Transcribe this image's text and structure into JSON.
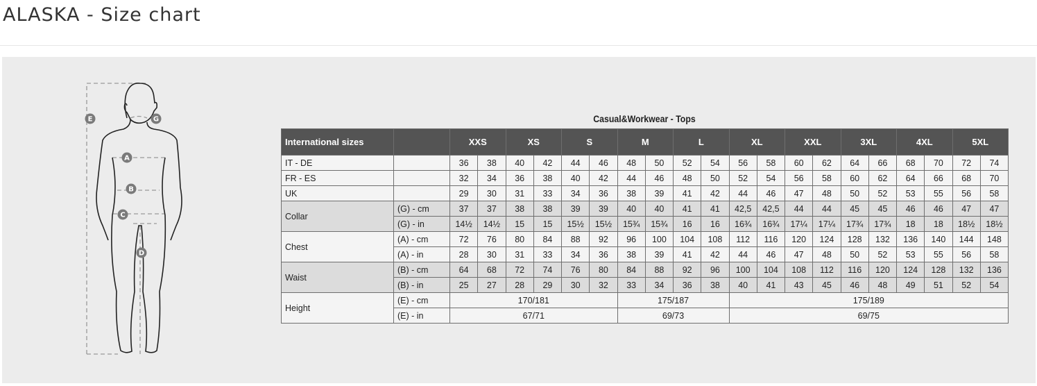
{
  "page": {
    "title": "ALASKA - Size chart"
  },
  "table": {
    "title": "Casual&Workwear - Tops",
    "header_label": "International sizes",
    "sizes": [
      "XXS",
      "XS",
      "S",
      "M",
      "L",
      "XL",
      "XXL",
      "3XL",
      "4XL",
      "5XL"
    ],
    "rows": [
      {
        "group": "IT - DE",
        "unit": "",
        "shade": false,
        "values": [
          "36",
          "38",
          "40",
          "42",
          "44",
          "46",
          "48",
          "50",
          "52",
          "54",
          "56",
          "58",
          "60",
          "62",
          "64",
          "66",
          "68",
          "70",
          "72",
          "74"
        ]
      },
      {
        "group": "FR - ES",
        "unit": "",
        "shade": false,
        "values": [
          "32",
          "34",
          "36",
          "38",
          "40",
          "42",
          "44",
          "46",
          "48",
          "50",
          "52",
          "54",
          "56",
          "58",
          "60",
          "62",
          "64",
          "66",
          "68",
          "70"
        ]
      },
      {
        "group": "UK",
        "unit": "",
        "shade": false,
        "values": [
          "29",
          "30",
          "31",
          "33",
          "34",
          "36",
          "38",
          "39",
          "41",
          "42",
          "44",
          "46",
          "47",
          "48",
          "50",
          "52",
          "53",
          "55",
          "56",
          "58"
        ]
      },
      {
        "group": "Collar",
        "unit": "(G) - cm",
        "shade": true,
        "values": [
          "37",
          "37",
          "38",
          "38",
          "39",
          "39",
          "40",
          "40",
          "41",
          "41",
          "42,5",
          "42,5",
          "44",
          "44",
          "45",
          "45",
          "46",
          "46",
          "47",
          "47"
        ]
      },
      {
        "group": "Collar",
        "unit": "(G)  - in",
        "shade": true,
        "values": [
          "14½",
          "14½",
          "15",
          "15",
          "15½",
          "15½",
          "15¾",
          "15¾",
          "16",
          "16",
          "16¾",
          "16¾",
          "17¼",
          "17¼",
          "17¾",
          "17¾",
          "18",
          "18",
          "18½",
          "18½"
        ]
      },
      {
        "group": "Chest",
        "unit": "(A) - cm",
        "shade": false,
        "values": [
          "72",
          "76",
          "80",
          "84",
          "88",
          "92",
          "96",
          "100",
          "104",
          "108",
          "112",
          "116",
          "120",
          "124",
          "128",
          "132",
          "136",
          "140",
          "144",
          "148"
        ]
      },
      {
        "group": "Chest",
        "unit": "(A) - in",
        "shade": false,
        "values": [
          "28",
          "30",
          "31",
          "33",
          "34",
          "36",
          "38",
          "39",
          "41",
          "42",
          "44",
          "46",
          "47",
          "48",
          "50",
          "52",
          "53",
          "55",
          "56",
          "58"
        ]
      },
      {
        "group": "Waist",
        "unit": "(B) - cm",
        "shade": true,
        "values": [
          "64",
          "68",
          "72",
          "74",
          "76",
          "80",
          "84",
          "88",
          "92",
          "96",
          "100",
          "104",
          "108",
          "112",
          "116",
          "120",
          "124",
          "128",
          "132",
          "136"
        ]
      },
      {
        "group": "Waist",
        "unit": "(B) - in",
        "shade": true,
        "values": [
          "25",
          "27",
          "28",
          "29",
          "30",
          "32",
          "33",
          "34",
          "36",
          "38",
          "40",
          "41",
          "43",
          "45",
          "46",
          "48",
          "49",
          "51",
          "52",
          "54"
        ]
      }
    ],
    "height_rows": [
      {
        "group": "Height",
        "unit": "(E) - cm",
        "spans": [
          {
            "cols": 6,
            "value": "170/181"
          },
          {
            "cols": 4,
            "value": "175/187"
          },
          {
            "cols": 10,
            "value": "175/189"
          }
        ]
      },
      {
        "group": "Height",
        "unit": "(E) - in",
        "spans": [
          {
            "cols": 6,
            "value": "67/71"
          },
          {
            "cols": 4,
            "value": "69/73"
          },
          {
            "cols": 10,
            "value": "69/75"
          }
        ]
      }
    ]
  },
  "figure": {
    "markers": [
      "E",
      "G",
      "A",
      "B",
      "C",
      "D"
    ]
  }
}
